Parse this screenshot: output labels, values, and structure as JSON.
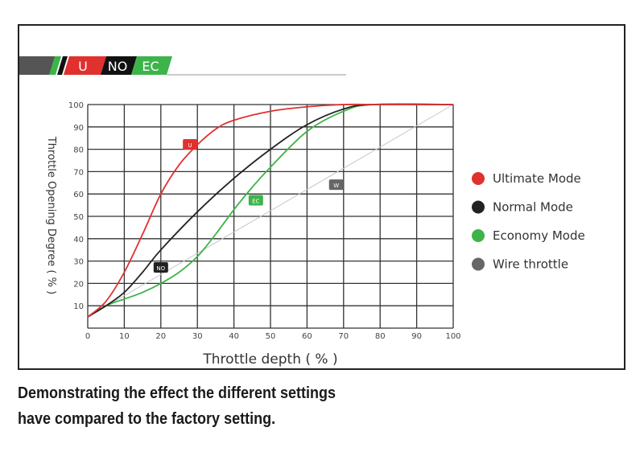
{
  "logo": {
    "labels": [
      "U",
      "NO",
      "EC"
    ]
  },
  "caption": {
    "line1": "Demonstrating the effect the different settings",
    "line2": "have compared to the factory setting."
  },
  "chart_data": {
    "type": "line",
    "title": "",
    "xlabel": "Throttle depth ( % )",
    "ylabel": "Throttle Opening Degree ( % )",
    "xlim": [
      0,
      100
    ],
    "ylim": [
      0,
      100
    ],
    "xticks": [
      "0",
      "10",
      "20",
      "30",
      "40",
      "50",
      "60",
      "70",
      "80",
      "90",
      "100"
    ],
    "yticks": [
      "10",
      "20",
      "30",
      "40",
      "50",
      "60",
      "70",
      "80",
      "90",
      "100"
    ],
    "grid": true,
    "legend_position": "right",
    "series": [
      {
        "name": "Ultimate Mode",
        "tag": "U",
        "color": "#e0312f",
        "x": [
          0,
          5,
          10,
          15,
          20,
          25,
          30,
          35,
          40,
          50,
          60,
          70,
          80,
          100
        ],
        "y": [
          5,
          12,
          25,
          42,
          60,
          73,
          82,
          89,
          93,
          97,
          99,
          100,
          100,
          100
        ],
        "label_at": [
          28,
          82
        ]
      },
      {
        "name": "Normal Mode",
        "tag": "NO",
        "color": "#222222",
        "x": [
          0,
          5,
          10,
          15,
          20,
          30,
          40,
          50,
          60,
          70,
          78,
          100
        ],
        "y": [
          5,
          10,
          16,
          25,
          35,
          52,
          67,
          80,
          91,
          98,
          100,
          100
        ],
        "label_at": [
          20,
          27
        ]
      },
      {
        "name": "Economy Mode",
        "tag": "EC",
        "color": "#3cb44a",
        "x": [
          0,
          5,
          10,
          15,
          20,
          25,
          30,
          35,
          40,
          45,
          50,
          60,
          70,
          78,
          100
        ],
        "y": [
          5,
          10,
          13,
          16,
          20,
          25,
          32,
          42,
          53,
          63,
          72,
          88,
          97,
          100,
          100
        ],
        "label_at": [
          46,
          57
        ]
      },
      {
        "name": "Wire throttle",
        "tag": "W",
        "color": "#c8c8c8",
        "x": [
          0,
          100
        ],
        "y": [
          5,
          100
        ],
        "label_at": [
          68,
          64
        ]
      }
    ]
  }
}
